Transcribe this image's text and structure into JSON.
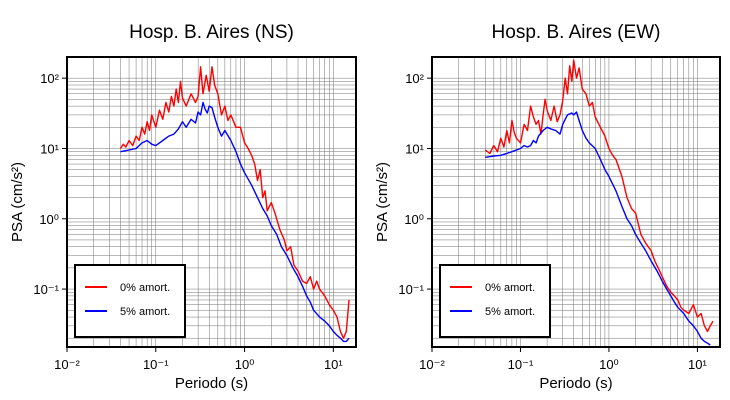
{
  "chart_data": [
    {
      "type": "line",
      "title": "Hosp. B. Aires (NS)",
      "xlabel": "Periodo (s)",
      "ylabel": "PSA (cm/s²)",
      "xscale": "log",
      "yscale": "log",
      "xlim": [
        0.01,
        18
      ],
      "ylim": [
        0.015,
        200
      ],
      "grid": true,
      "legend_position": "bottom-left",
      "x_tick_labels": [
        "10⁻²",
        "10⁻¹",
        "10⁰",
        "10¹"
      ],
      "y_tick_labels": [
        "10⁻¹",
        "10⁰",
        "10¹",
        "10²"
      ],
      "series": [
        {
          "name": "0% amort.",
          "color": "#ff0000",
          "points": [
            [
              0.04,
              10
            ],
            [
              0.043,
              11.5
            ],
            [
              0.046,
              10.5
            ],
            [
              0.05,
              13
            ],
            [
              0.055,
              11
            ],
            [
              0.06,
              15
            ],
            [
              0.065,
              13
            ],
            [
              0.07,
              20
            ],
            [
              0.075,
              16
            ],
            [
              0.08,
              24
            ],
            [
              0.085,
              18
            ],
            [
              0.09,
              30
            ],
            [
              0.1,
              20
            ],
            [
              0.11,
              35
            ],
            [
              0.12,
              26
            ],
            [
              0.13,
              45
            ],
            [
              0.14,
              33
            ],
            [
              0.15,
              55
            ],
            [
              0.16,
              40
            ],
            [
              0.17,
              70
            ],
            [
              0.18,
              45
            ],
            [
              0.19,
              90
            ],
            [
              0.2,
              52
            ],
            [
              0.22,
              40
            ],
            [
              0.25,
              60
            ],
            [
              0.28,
              45
            ],
            [
              0.3,
              55
            ],
            [
              0.32,
              145
            ],
            [
              0.34,
              60
            ],
            [
              0.37,
              110
            ],
            [
              0.4,
              65
            ],
            [
              0.43,
              145
            ],
            [
              0.46,
              80
            ],
            [
              0.5,
              60
            ],
            [
              0.55,
              30
            ],
            [
              0.6,
              40
            ],
            [
              0.65,
              25
            ],
            [
              0.7,
              30
            ],
            [
              0.8,
              20
            ],
            [
              0.9,
              20
            ],
            [
              1.0,
              12
            ],
            [
              1.1,
              10
            ],
            [
              1.2,
              8
            ],
            [
              1.3,
              6
            ],
            [
              1.4,
              3.5
            ],
            [
              1.5,
              5
            ],
            [
              1.6,
              2
            ],
            [
              1.7,
              2.5
            ],
            [
              1.8,
              1.3
            ],
            [
              2.0,
              1.7
            ],
            [
              2.2,
              1.2
            ],
            [
              2.5,
              0.7
            ],
            [
              2.8,
              0.5
            ],
            [
              3.0,
              0.35
            ],
            [
              3.3,
              0.4
            ],
            [
              3.6,
              0.22
            ],
            [
              4.0,
              0.18
            ],
            [
              4.5,
              0.13
            ],
            [
              5.0,
              0.12
            ],
            [
              5.5,
              0.15
            ],
            [
              6.0,
              0.1
            ],
            [
              6.5,
              0.13
            ],
            [
              7.0,
              0.1
            ],
            [
              8.0,
              0.08
            ],
            [
              9.0,
              0.06
            ],
            [
              10.0,
              0.05
            ],
            [
              11.0,
              0.04
            ],
            [
              12.0,
              0.025
            ],
            [
              13.0,
              0.02
            ],
            [
              14.0,
              0.025
            ],
            [
              15.0,
              0.07
            ]
          ]
        },
        {
          "name": "5% amort.",
          "color": "#0000ff",
          "points": [
            [
              0.04,
              9
            ],
            [
              0.05,
              9.5
            ],
            [
              0.06,
              10
            ],
            [
              0.07,
              12
            ],
            [
              0.08,
              13
            ],
            [
              0.09,
              11.5
            ],
            [
              0.1,
              11
            ],
            [
              0.12,
              13
            ],
            [
              0.14,
              15
            ],
            [
              0.16,
              16
            ],
            [
              0.18,
              19
            ],
            [
              0.2,
              24
            ],
            [
              0.22,
              20
            ],
            [
              0.25,
              26
            ],
            [
              0.28,
              23
            ],
            [
              0.3,
              33
            ],
            [
              0.32,
              30
            ],
            [
              0.34,
              45
            ],
            [
              0.36,
              36
            ],
            [
              0.38,
              32
            ],
            [
              0.4,
              40
            ],
            [
              0.43,
              38
            ],
            [
              0.46,
              28
            ],
            [
              0.5,
              20
            ],
            [
              0.55,
              15
            ],
            [
              0.6,
              18
            ],
            [
              0.7,
              13
            ],
            [
              0.8,
              9
            ],
            [
              0.9,
              6
            ],
            [
              1.0,
              4.5
            ],
            [
              1.2,
              3
            ],
            [
              1.4,
              2
            ],
            [
              1.6,
              1.4
            ],
            [
              1.8,
              1.1
            ],
            [
              2.0,
              0.8
            ],
            [
              2.3,
              0.6
            ],
            [
              2.6,
              0.4
            ],
            [
              3.0,
              0.3
            ],
            [
              3.5,
              0.2
            ],
            [
              4.0,
              0.15
            ],
            [
              4.5,
              0.11
            ],
            [
              5.0,
              0.08
            ],
            [
              5.5,
              0.065
            ],
            [
              6.0,
              0.05
            ],
            [
              7.0,
              0.04
            ],
            [
              8.0,
              0.035
            ],
            [
              9.0,
              0.03
            ],
            [
              10.0,
              0.025
            ],
            [
              11.0,
              0.022
            ],
            [
              12.0,
              0.02
            ],
            [
              13.0,
              0.018
            ],
            [
              14.0,
              0.018
            ],
            [
              15.0,
              0.02
            ]
          ]
        }
      ]
    },
    {
      "type": "line",
      "title": "Hosp. B. Aires (EW)",
      "xlabel": "Periodo (s)",
      "ylabel": "PSA (cm/s²)",
      "xscale": "log",
      "yscale": "log",
      "xlim": [
        0.01,
        18
      ],
      "ylim": [
        0.015,
        200
      ],
      "grid": true,
      "legend_position": "bottom-left",
      "x_tick_labels": [
        "10⁻²",
        "10⁻¹",
        "10⁰",
        "10¹"
      ],
      "y_tick_labels": [
        "10⁻¹",
        "10⁰",
        "10¹",
        "10²"
      ],
      "series": [
        {
          "name": "0% amort.",
          "color": "#ff0000",
          "points": [
            [
              0.04,
              9.5
            ],
            [
              0.045,
              8.5
            ],
            [
              0.05,
              11
            ],
            [
              0.055,
              9
            ],
            [
              0.06,
              14
            ],
            [
              0.065,
              10.5
            ],
            [
              0.07,
              18
            ],
            [
              0.075,
              12
            ],
            [
              0.08,
              25
            ],
            [
              0.085,
              17
            ],
            [
              0.09,
              14
            ],
            [
              0.1,
              12
            ],
            [
              0.11,
              22
            ],
            [
              0.12,
              18
            ],
            [
              0.13,
              40
            ],
            [
              0.14,
              28
            ],
            [
              0.15,
              22
            ],
            [
              0.16,
              25
            ],
            [
              0.17,
              16
            ],
            [
              0.18,
              30
            ],
            [
              0.19,
              50
            ],
            [
              0.2,
              35
            ],
            [
              0.22,
              25
            ],
            [
              0.24,
              40
            ],
            [
              0.26,
              24
            ],
            [
              0.28,
              30
            ],
            [
              0.3,
              48
            ],
            [
              0.32,
              100
            ],
            [
              0.34,
              60
            ],
            [
              0.36,
              150
            ],
            [
              0.38,
              90
            ],
            [
              0.4,
              180
            ],
            [
              0.43,
              100
            ],
            [
              0.46,
              140
            ],
            [
              0.5,
              70
            ],
            [
              0.55,
              60
            ],
            [
              0.6,
              40
            ],
            [
              0.65,
              45
            ],
            [
              0.7,
              28
            ],
            [
              0.8,
              20
            ],
            [
              0.9,
              15
            ],
            [
              1.0,
              10
            ],
            [
              1.1,
              8
            ],
            [
              1.2,
              7
            ],
            [
              1.4,
              4
            ],
            [
              1.6,
              2
            ],
            [
              1.8,
              1.4
            ],
            [
              2.0,
              1.2
            ],
            [
              2.3,
              0.6
            ],
            [
              2.6,
              0.45
            ],
            [
              3.0,
              0.35
            ],
            [
              3.3,
              0.25
            ],
            [
              3.6,
              0.2
            ],
            [
              4.0,
              0.15
            ],
            [
              4.5,
              0.11
            ],
            [
              5.0,
              0.09
            ],
            [
              5.5,
              0.08
            ],
            [
              6.0,
              0.07
            ],
            [
              6.5,
              0.055
            ],
            [
              7.0,
              0.05
            ],
            [
              8.0,
              0.045
            ],
            [
              9.0,
              0.06
            ],
            [
              10.0,
              0.04
            ],
            [
              11.0,
              0.045
            ],
            [
              12.0,
              0.03
            ],
            [
              13.0,
              0.025
            ],
            [
              14.0,
              0.03
            ],
            [
              15.0,
              0.035
            ]
          ]
        },
        {
          "name": "5% amort.",
          "color": "#0000ff",
          "points": [
            [
              0.04,
              7.5
            ],
            [
              0.05,
              7.8
            ],
            [
              0.06,
              8
            ],
            [
              0.07,
              8.5
            ],
            [
              0.08,
              9
            ],
            [
              0.09,
              9.5
            ],
            [
              0.1,
              10
            ],
            [
              0.11,
              11
            ],
            [
              0.12,
              10.5
            ],
            [
              0.13,
              11
            ],
            [
              0.14,
              13
            ],
            [
              0.15,
              12
            ],
            [
              0.16,
              15
            ],
            [
              0.18,
              18
            ],
            [
              0.2,
              20
            ],
            [
              0.22,
              19
            ],
            [
              0.25,
              18
            ],
            [
              0.28,
              16
            ],
            [
              0.3,
              22
            ],
            [
              0.32,
              26
            ],
            [
              0.34,
              30
            ],
            [
              0.36,
              31
            ],
            [
              0.38,
              32
            ],
            [
              0.4,
              30
            ],
            [
              0.43,
              33
            ],
            [
              0.46,
              25
            ],
            [
              0.5,
              18
            ],
            [
              0.55,
              14
            ],
            [
              0.6,
              12
            ],
            [
              0.7,
              10
            ],
            [
              0.8,
              7
            ],
            [
              0.9,
              5
            ],
            [
              1.0,
              4
            ],
            [
              1.2,
              2.5
            ],
            [
              1.4,
              1.5
            ],
            [
              1.6,
              1
            ],
            [
              1.8,
              0.8
            ],
            [
              2.0,
              0.6
            ],
            [
              2.3,
              0.45
            ],
            [
              2.6,
              0.35
            ],
            [
              3.0,
              0.25
            ],
            [
              3.5,
              0.18
            ],
            [
              4.0,
              0.13
            ],
            [
              4.5,
              0.1
            ],
            [
              5.0,
              0.08
            ],
            [
              5.5,
              0.065
            ],
            [
              6.0,
              0.055
            ],
            [
              7.0,
              0.045
            ],
            [
              8.0,
              0.035
            ],
            [
              9.0,
              0.03
            ],
            [
              10.0,
              0.025
            ],
            [
              11.0,
              0.02
            ],
            [
              12.0,
              0.018
            ],
            [
              13.0,
              0.017
            ],
            [
              14.0,
              0.016
            ]
          ]
        }
      ]
    }
  ]
}
